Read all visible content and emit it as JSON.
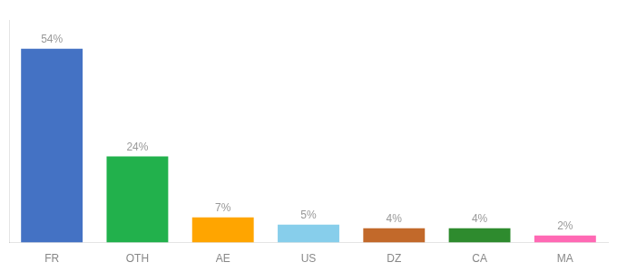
{
  "chart_data": {
    "type": "bar",
    "categories": [
      "FR",
      "OTH",
      "AE",
      "US",
      "DZ",
      "CA",
      "MA"
    ],
    "values": [
      54,
      24,
      7,
      5,
      4,
      4,
      2
    ],
    "value_labels": [
      "54%",
      "24%",
      "7%",
      "5%",
      "4%",
      "4%",
      "2%"
    ],
    "colors": [
      "#4472C4",
      "#22B14C",
      "#FFA500",
      "#87CEEB",
      "#C2692A",
      "#2E8B2E",
      "#FF69B4"
    ],
    "ylim": [
      0,
      62
    ],
    "grid": false,
    "data_labels": true,
    "tick_labels": "x"
  }
}
